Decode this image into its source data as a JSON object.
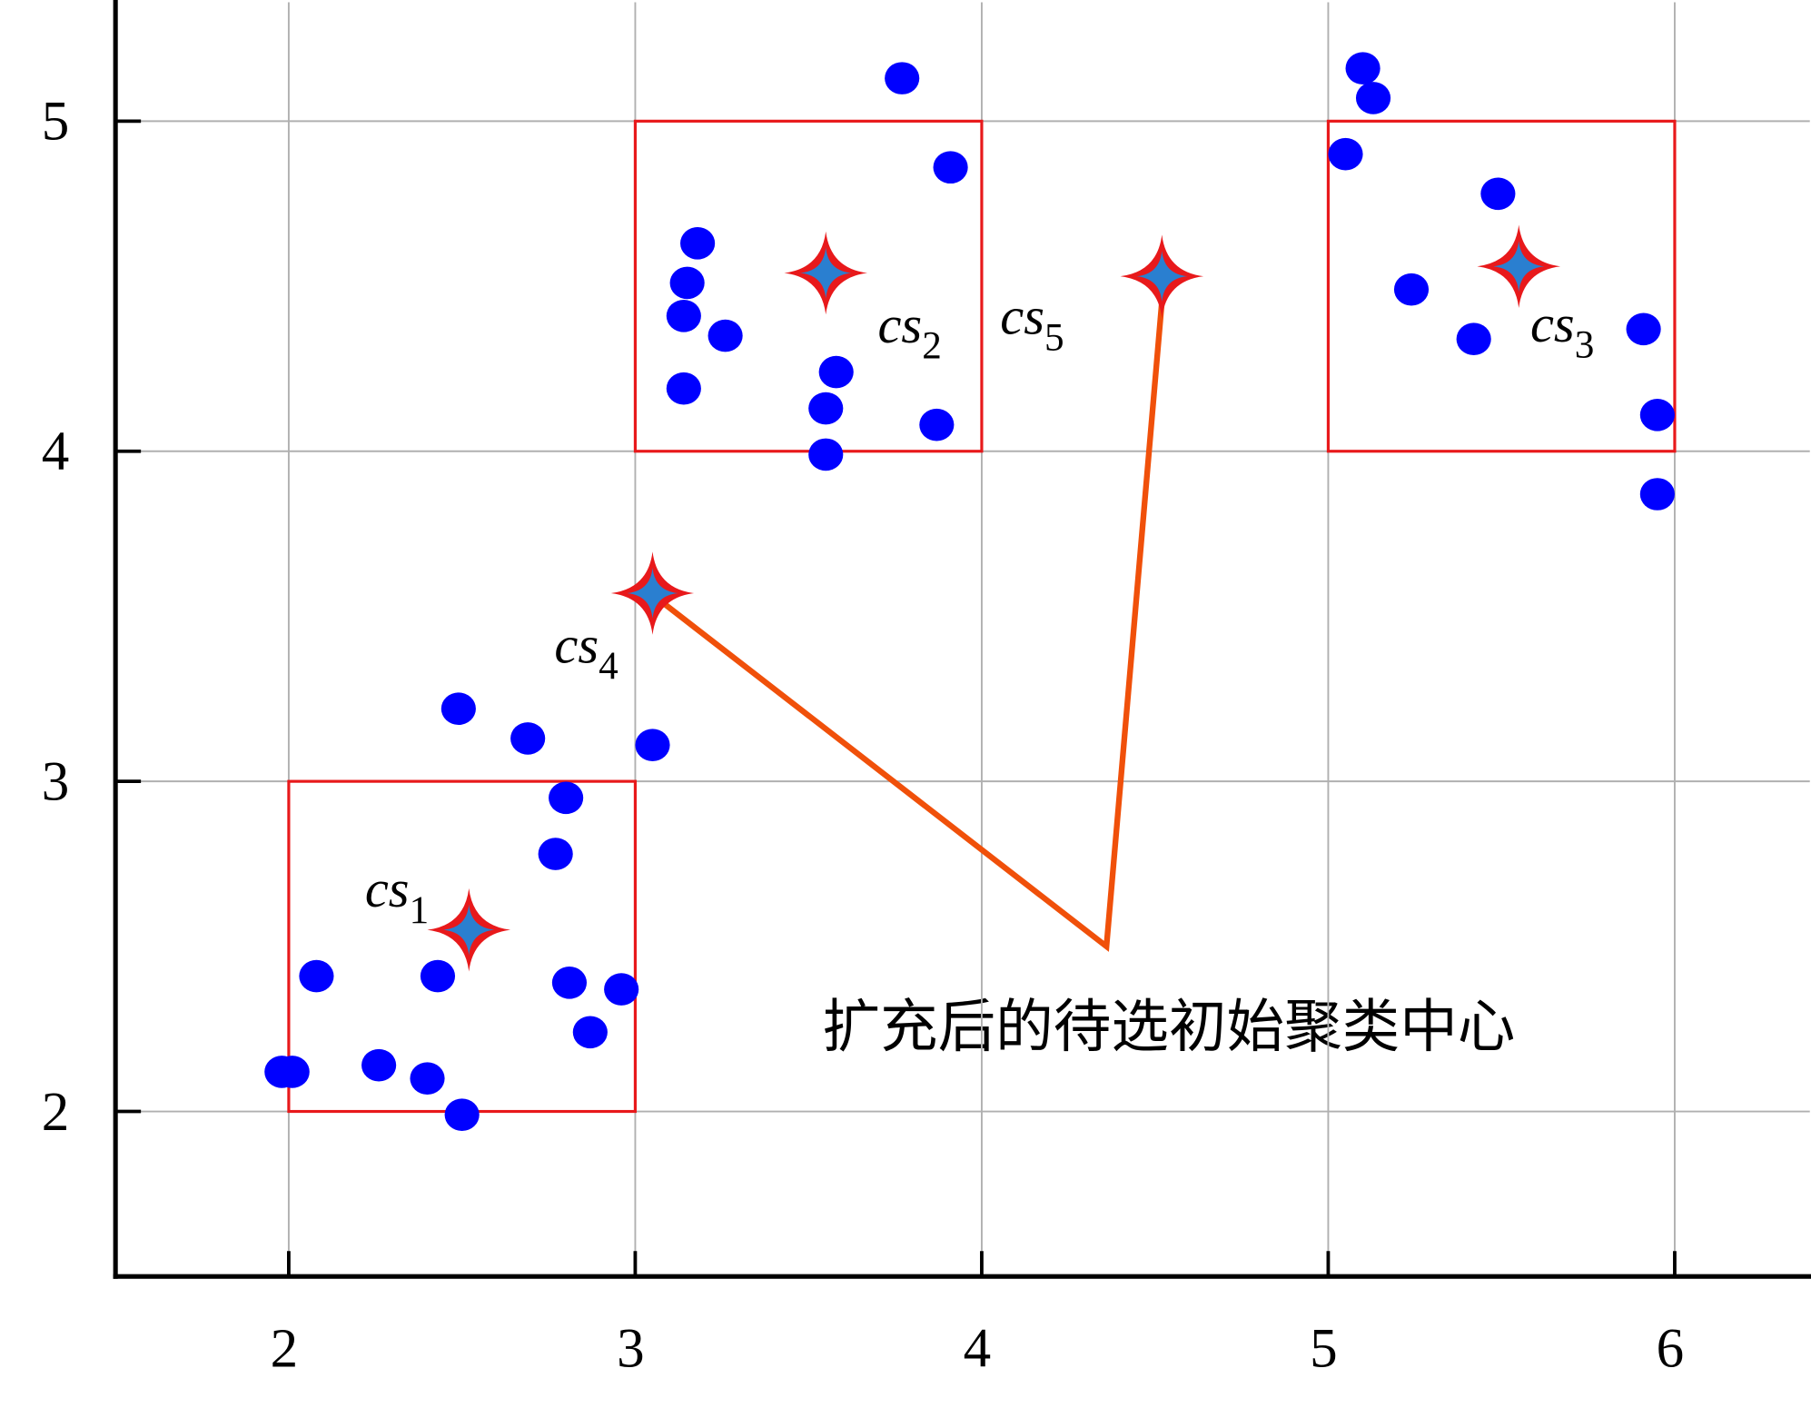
{
  "chart_data": {
    "type": "scatter",
    "xlim": [
      1.5,
      6.39
    ],
    "ylim": [
      1.5,
      5.36
    ],
    "xticks": [
      2,
      3,
      4,
      5,
      6
    ],
    "yticks": [
      2,
      3,
      4,
      5
    ],
    "grid": true,
    "series": [
      {
        "color": "#0000ff",
        "x": [
          2.49,
          2.69,
          3.05,
          2.8,
          2.77,
          2.08,
          2.43,
          2.81,
          2.96,
          2.87,
          1.98,
          2.01,
          2.26,
          2.4,
          2.5,
          3.77,
          3.91,
          3.18,
          3.15,
          3.14,
          3.26,
          3.14,
          3.58,
          3.55,
          3.87,
          3.55,
          5.1,
          5.13,
          5.05,
          5.49,
          5.24,
          5.42,
          5.91,
          5.95,
          5.95
        ],
        "values": [
          3.22,
          3.13,
          3.11,
          2.95,
          2.78,
          2.41,
          2.41,
          2.39,
          2.37,
          2.24,
          2.12,
          2.12,
          2.14,
          2.1,
          1.99,
          5.13,
          4.86,
          4.63,
          4.51,
          4.41,
          4.35,
          4.19,
          4.24,
          4.13,
          4.08,
          3.99,
          5.16,
          5.07,
          4.9,
          4.78,
          4.49,
          4.34,
          4.37,
          4.11,
          3.87
        ]
      }
    ],
    "centers": {
      "color": "#e8191b",
      "x": [
        2.52,
        3.55,
        5.55,
        3.05,
        4.52
      ],
      "values": [
        2.55,
        4.54,
        4.56,
        3.57,
        4.53
      ],
      "labels": [
        {
          "text": "cs",
          "sub": "1"
        },
        {
          "text": "cs",
          "sub": "2"
        },
        {
          "text": "cs",
          "sub": "3"
        },
        {
          "text": "cs",
          "sub": "4"
        },
        {
          "text": "cs",
          "sub": "5"
        }
      ]
    },
    "regions": {
      "color": "#e8191b",
      "boxes": [
        {
          "x": [
            2,
            3
          ],
          "y": [
            2,
            3
          ]
        },
        {
          "x": [
            3,
            4
          ],
          "y": [
            4,
            5
          ]
        },
        {
          "x": [
            5,
            6
          ],
          "y": [
            4,
            5
          ]
        }
      ]
    },
    "annotation": {
      "text": "扩充后的待选初始聚类中心",
      "color": "#f0500a",
      "x": [
        3.05,
        4.36,
        4.52
      ],
      "y": [
        3.57,
        2.5,
        4.53
      ]
    }
  }
}
